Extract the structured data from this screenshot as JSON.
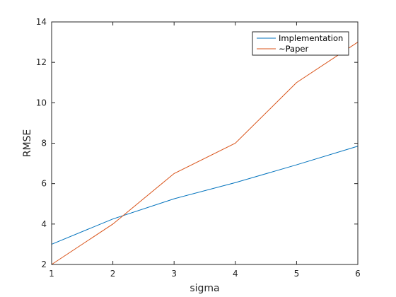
{
  "chart_data": {
    "type": "line",
    "title": "",
    "xlabel": "sigma",
    "ylabel": "RMSE",
    "x": [
      1,
      2,
      3,
      4,
      5,
      6
    ],
    "xlim": [
      1,
      6
    ],
    "ylim": [
      2,
      14
    ],
    "xticks": [
      1,
      2,
      3,
      4,
      5,
      6
    ],
    "yticks": [
      2,
      4,
      6,
      8,
      10,
      12,
      14
    ],
    "grid": false,
    "legend_position": "top-right",
    "series": [
      {
        "name": "Implementation",
        "color": "#0072BD",
        "values": [
          3.0,
          4.25,
          5.25,
          6.05,
          6.93,
          7.85
        ]
      },
      {
        "name": "~Paper",
        "color": "#D95319",
        "values": [
          2.0,
          4.0,
          6.5,
          8.0,
          11.0,
          13.0
        ]
      }
    ]
  }
}
